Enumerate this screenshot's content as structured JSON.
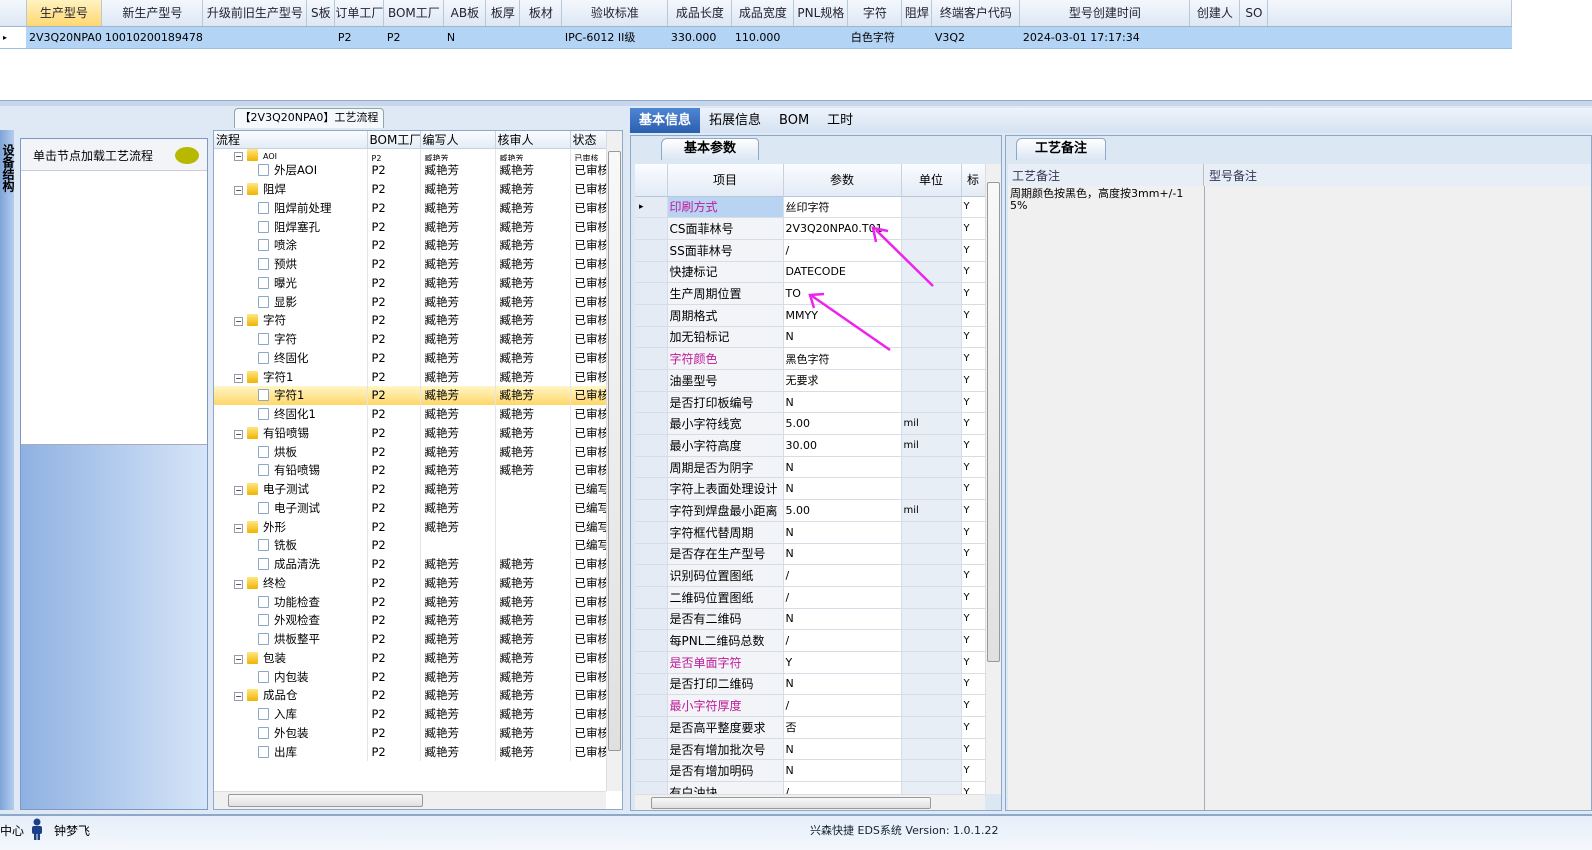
{
  "top_grid": {
    "columns": [
      "生产型号",
      "新生产型号",
      "升级前旧生产型号",
      "S板",
      "订单工厂",
      "BOM工厂",
      "AB板",
      "板厚",
      "板材",
      "验收标准",
      "成品长度",
      "成品宽度",
      "PNL规格",
      "字符",
      "阻焊",
      "终端客户代码",
      "型号创建时间",
      "创建人",
      "SO"
    ],
    "row": [
      "2V3Q20NPA0",
      "10010200189478",
      "",
      "",
      "P2",
      "P2",
      "N",
      "",
      "",
      "IPC-6012 II级",
      "330.000",
      "110.000",
      "",
      "白色字符",
      "",
      "V3Q2",
      "2024-03-01 17:17:34",
      "",
      ""
    ]
  },
  "left_nav": {
    "side_tab": "设备结构",
    "hint": "单击节点加载工艺流程",
    "bubble_icon": "speech-bubble"
  },
  "process": {
    "title": "【2V3Q20NPA0】工艺流程",
    "columns": [
      "流程",
      "BOM工厂",
      "编写人",
      "核审人",
      "状态"
    ],
    "rows": [
      {
        "name": "AOI",
        "folder": true,
        "factory": "P2",
        "writer": "臧艳芳",
        "reviewer": "臧艳芳",
        "status": "已审核"
      },
      {
        "name": "外层AOI",
        "folder": false,
        "factory": "P2",
        "writer": "臧艳芳",
        "reviewer": "臧艳芳",
        "status": "已审核"
      },
      {
        "name": "阻焊",
        "folder": true,
        "factory": "P2",
        "writer": "臧艳芳",
        "reviewer": "臧艳芳",
        "status": "已审核"
      },
      {
        "name": "阻焊前处理",
        "folder": false,
        "factory": "P2",
        "writer": "臧艳芳",
        "reviewer": "臧艳芳",
        "status": "已审核"
      },
      {
        "name": "阻焊塞孔",
        "folder": false,
        "factory": "P2",
        "writer": "臧艳芳",
        "reviewer": "臧艳芳",
        "status": "已审核"
      },
      {
        "name": "喷涂",
        "folder": false,
        "factory": "P2",
        "writer": "臧艳芳",
        "reviewer": "臧艳芳",
        "status": "已审核"
      },
      {
        "name": "预烘",
        "folder": false,
        "factory": "P2",
        "writer": "臧艳芳",
        "reviewer": "臧艳芳",
        "status": "已审核"
      },
      {
        "name": "曝光",
        "folder": false,
        "factory": "P2",
        "writer": "臧艳芳",
        "reviewer": "臧艳芳",
        "status": "已审核"
      },
      {
        "name": "显影",
        "folder": false,
        "factory": "P2",
        "writer": "臧艳芳",
        "reviewer": "臧艳芳",
        "status": "已审核"
      },
      {
        "name": "字符",
        "folder": true,
        "factory": "P2",
        "writer": "臧艳芳",
        "reviewer": "臧艳芳",
        "status": "已审核"
      },
      {
        "name": "字符",
        "folder": false,
        "factory": "P2",
        "writer": "臧艳芳",
        "reviewer": "臧艳芳",
        "status": "已审核"
      },
      {
        "name": "终固化",
        "folder": false,
        "factory": "P2",
        "writer": "臧艳芳",
        "reviewer": "臧艳芳",
        "status": "已审核"
      },
      {
        "name": "字符1",
        "folder": true,
        "factory": "P2",
        "writer": "臧艳芳",
        "reviewer": "臧艳芳",
        "status": "已审核"
      },
      {
        "name": "字符1",
        "folder": false,
        "factory": "P2",
        "writer": "臧艳芳",
        "reviewer": "臧艳芳",
        "status": "已审核",
        "selected": true
      },
      {
        "name": "终固化1",
        "folder": false,
        "factory": "P2",
        "writer": "臧艳芳",
        "reviewer": "臧艳芳",
        "status": "已审核"
      },
      {
        "name": "有铅喷锡",
        "folder": true,
        "factory": "P2",
        "writer": "臧艳芳",
        "reviewer": "臧艳芳",
        "status": "已审核"
      },
      {
        "name": "烘板",
        "folder": false,
        "factory": "P2",
        "writer": "臧艳芳",
        "reviewer": "臧艳芳",
        "status": "已审核"
      },
      {
        "name": "有铅喷锡",
        "folder": false,
        "factory": "P2",
        "writer": "臧艳芳",
        "reviewer": "臧艳芳",
        "status": "已审核"
      },
      {
        "name": "电子测试",
        "folder": true,
        "factory": "P2",
        "writer": "臧艳芳",
        "reviewer": "",
        "status": "已编写"
      },
      {
        "name": "电子测试",
        "folder": false,
        "factory": "P2",
        "writer": "臧艳芳",
        "reviewer": "",
        "status": "已编写"
      },
      {
        "name": "外形",
        "folder": true,
        "factory": "P2",
        "writer": "臧艳芳",
        "reviewer": "",
        "status": "已编写"
      },
      {
        "name": "铣板",
        "folder": false,
        "factory": "P2",
        "writer": "",
        "reviewer": "",
        "status": "已编写"
      },
      {
        "name": "成品清洗",
        "folder": false,
        "factory": "P2",
        "writer": "臧艳芳",
        "reviewer": "臧艳芳",
        "status": "已审核"
      },
      {
        "name": "终检",
        "folder": true,
        "factory": "P2",
        "writer": "臧艳芳",
        "reviewer": "臧艳芳",
        "status": "已审核"
      },
      {
        "name": "功能检查",
        "folder": false,
        "factory": "P2",
        "writer": "臧艳芳",
        "reviewer": "臧艳芳",
        "status": "已审核"
      },
      {
        "name": "外观检查",
        "folder": false,
        "factory": "P2",
        "writer": "臧艳芳",
        "reviewer": "臧艳芳",
        "status": "已审核"
      },
      {
        "name": "烘板整平",
        "folder": false,
        "factory": "P2",
        "writer": "臧艳芳",
        "reviewer": "臧艳芳",
        "status": "已审核"
      },
      {
        "name": "包装",
        "folder": true,
        "factory": "P2",
        "writer": "臧艳芳",
        "reviewer": "臧艳芳",
        "status": "已审核"
      },
      {
        "name": "内包装",
        "folder": false,
        "factory": "P2",
        "writer": "臧艳芳",
        "reviewer": "臧艳芳",
        "status": "已审核"
      },
      {
        "name": "成品仓",
        "folder": true,
        "factory": "P2",
        "writer": "臧艳芳",
        "reviewer": "臧艳芳",
        "status": "已审核"
      },
      {
        "name": "入库",
        "folder": false,
        "factory": "P2",
        "writer": "臧艳芳",
        "reviewer": "臧艳芳",
        "status": "已审核"
      },
      {
        "name": "外包装",
        "folder": false,
        "factory": "P2",
        "writer": "臧艳芳",
        "reviewer": "臧艳芳",
        "status": "已审核"
      },
      {
        "name": "出库",
        "folder": false,
        "factory": "P2",
        "writer": "臧艳芳",
        "reviewer": "臧艳芳",
        "status": "已审核"
      }
    ]
  },
  "tabs": [
    "基本信息",
    "拓展信息",
    "BOM",
    "工时"
  ],
  "basic_params": {
    "tab": "基本参数",
    "columns": [
      "项目",
      "参数",
      "单位",
      "标"
    ],
    "rows": [
      {
        "k": "印刷方式",
        "v": "丝印字符",
        "u": "",
        "y": "Y",
        "mag": true,
        "current": true
      },
      {
        "k": "CS面菲林号",
        "v": "2V3Q20NPA0.T01",
        "u": "",
        "y": "Y"
      },
      {
        "k": "SS面菲林号",
        "v": "/",
        "u": "",
        "y": "Y"
      },
      {
        "k": "快捷标记",
        "v": "DATECODE",
        "u": "",
        "y": "Y"
      },
      {
        "k": "生产周期位置",
        "v": "TO",
        "u": "",
        "y": "Y"
      },
      {
        "k": "周期格式",
        "v": "MMYY",
        "u": "",
        "y": "Y"
      },
      {
        "k": "加无铅标记",
        "v": "N",
        "u": "",
        "y": "Y"
      },
      {
        "k": "字符颜色",
        "v": "黑色字符",
        "u": "",
        "y": "Y",
        "mag": true
      },
      {
        "k": "油墨型号",
        "v": "无要求",
        "u": "",
        "y": "Y"
      },
      {
        "k": "是否打印板编号",
        "v": "N",
        "u": "",
        "y": "Y"
      },
      {
        "k": "最小字符线宽",
        "v": "5.00",
        "u": "mil",
        "y": "Y"
      },
      {
        "k": "最小字符高度",
        "v": "30.00",
        "u": "mil",
        "y": "Y"
      },
      {
        "k": "周期是否为阴字",
        "v": "N",
        "u": "",
        "y": "Y"
      },
      {
        "k": "字符上表面处理设计",
        "v": "N",
        "u": "",
        "y": "Y"
      },
      {
        "k": "字符到焊盘最小距离",
        "v": "5.00",
        "u": "mil",
        "y": "Y"
      },
      {
        "k": "字符框代替周期",
        "v": "N",
        "u": "",
        "y": "Y"
      },
      {
        "k": "是否存在生产型号",
        "v": "N",
        "u": "",
        "y": "Y"
      },
      {
        "k": "识别码位置图纸",
        "v": "/",
        "u": "",
        "y": "Y"
      },
      {
        "k": "二维码位置图纸",
        "v": "/",
        "u": "",
        "y": "Y"
      },
      {
        "k": "是否有二维码",
        "v": "N",
        "u": "",
        "y": "Y"
      },
      {
        "k": "每PNL二维码总数",
        "v": "/",
        "u": "",
        "y": "Y"
      },
      {
        "k": "是否单面字符",
        "v": "Y",
        "u": "",
        "y": "Y",
        "mag": true
      },
      {
        "k": "是否打印二维码",
        "v": "N",
        "u": "",
        "y": "Y"
      },
      {
        "k": "最小字符厚度",
        "v": "/",
        "u": "",
        "y": "Y",
        "mag": true
      },
      {
        "k": "是否高平整度要求",
        "v": "否",
        "u": "",
        "y": "Y"
      },
      {
        "k": "是否有增加批次号",
        "v": "N",
        "u": "",
        "y": "Y"
      },
      {
        "k": "是否有增加明码",
        "v": "N",
        "u": "",
        "y": "Y"
      },
      {
        "k": "有白油块",
        "v": "/",
        "u": "",
        "y": "Y"
      }
    ]
  },
  "notes": {
    "tab": "工艺备注",
    "col1": "工艺备注",
    "col2": "型号备注",
    "text": "周期颜色按黑色，高度按3mm+/-15%"
  },
  "colors": {
    "accent": "#2a5fb0",
    "highlight": "#c0189a",
    "annotation_arrow": "#ee22ee",
    "selection": "#ffd769"
  },
  "status_bar": {
    "left": "中心",
    "user_icon": "person",
    "user": "钟梦飞",
    "version": "兴森快捷 EDS系统 Version: 1.0.1.22"
  }
}
